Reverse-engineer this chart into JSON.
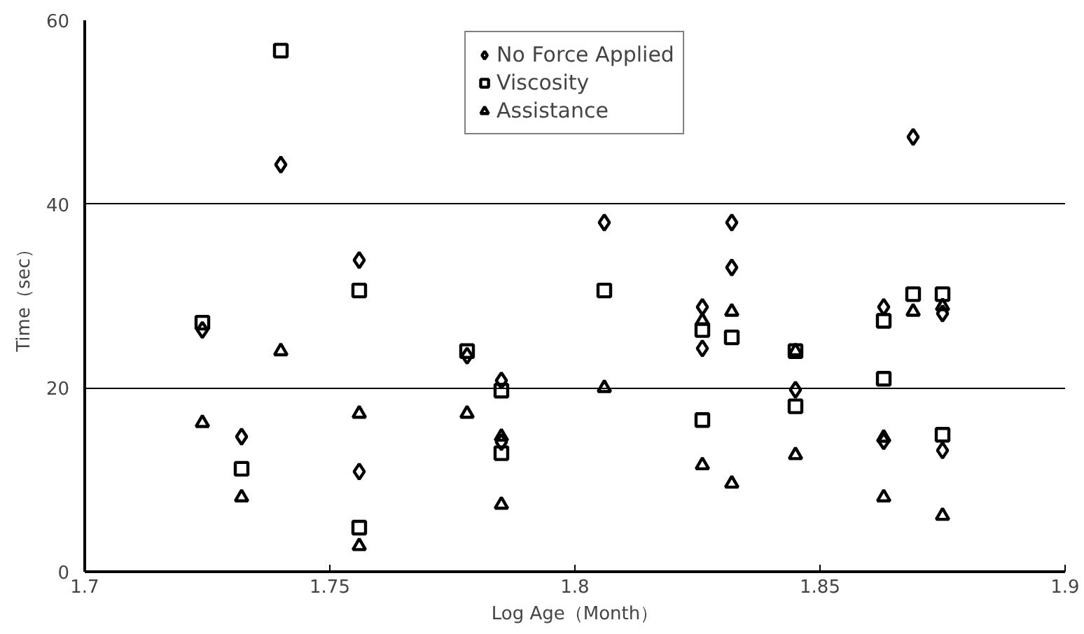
{
  "chart_data": {
    "type": "scatter",
    "xlabel": "Log Age（Month）",
    "ylabel": "Time（sec）",
    "xlim": [
      1.7,
      1.9
    ],
    "xticks": [
      1.7,
      1.75,
      1.8,
      1.85,
      1.9
    ],
    "ylim": [
      0,
      60
    ],
    "yticks": [
      0,
      20,
      40,
      60
    ],
    "grid": "y",
    "legend": "top",
    "series": [
      {
        "name": "No Force Applied",
        "color": "#000000",
        "marker": "diamond",
        "x": [
          1.724,
          1.732,
          1.74,
          1.756,
          1.756,
          1.778,
          1.785,
          1.785,
          1.806,
          1.826,
          1.826,
          1.832,
          1.832,
          1.845,
          1.863,
          1.863,
          1.869,
          1.875,
          1.875
        ],
        "values": [
          26.3,
          14.7,
          44.3,
          33.9,
          10.9,
          23.5,
          20.8,
          14.1,
          38.0,
          28.8,
          24.3,
          38.0,
          33.1,
          19.8,
          28.8,
          14.2,
          47.3,
          28.1,
          13.2
        ]
      },
      {
        "name": "Viscosity",
        "color": "#000000",
        "marker": "square",
        "x": [
          1.724,
          1.732,
          1.74,
          1.756,
          1.756,
          1.778,
          1.785,
          1.785,
          1.806,
          1.826,
          1.826,
          1.832,
          1.845,
          1.845,
          1.863,
          1.863,
          1.869,
          1.875,
          1.875
        ],
        "values": [
          27.1,
          11.2,
          56.7,
          30.6,
          4.8,
          24.0,
          19.7,
          12.9,
          30.6,
          26.3,
          16.5,
          25.5,
          24.0,
          18.0,
          27.3,
          21.0,
          30.2,
          30.2,
          14.9
        ]
      },
      {
        "name": "Assistance",
        "color": "#000000",
        "marker": "triangle",
        "x": [
          1.724,
          1.732,
          1.74,
          1.756,
          1.756,
          1.778,
          1.785,
          1.785,
          1.806,
          1.826,
          1.826,
          1.832,
          1.832,
          1.845,
          1.845,
          1.863,
          1.863,
          1.869,
          1.875,
          1.875
        ],
        "values": [
          16.2,
          8.1,
          24.0,
          17.2,
          2.8,
          17.2,
          14.7,
          7.3,
          20.0,
          27.3,
          11.6,
          28.3,
          9.6,
          24.0,
          12.7,
          14.6,
          8.1,
          28.3,
          28.9,
          6.1
        ]
      }
    ]
  }
}
